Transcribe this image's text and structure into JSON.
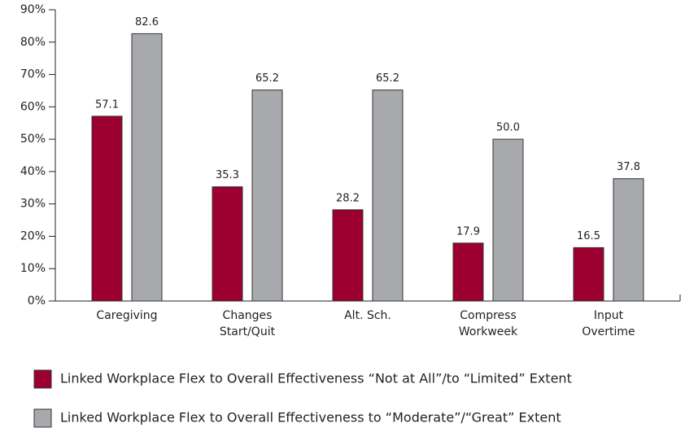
{
  "chart_data": {
    "type": "bar",
    "categories": [
      [
        "Caregiving"
      ],
      [
        "Changes",
        "Start/Quit"
      ],
      [
        "Alt. Sch."
      ],
      [
        "Compress",
        "Workweek"
      ],
      [
        "Input",
        "Overtime"
      ]
    ],
    "series": [
      {
        "name": "Linked Workplace Flex to Overall Effectiveness “Not at All”/to “Limited” Extent",
        "color": "#9b0030",
        "values": [
          57.1,
          35.3,
          28.2,
          17.9,
          16.5
        ],
        "value_labels": [
          "57.1",
          "35.3",
          "28.2",
          "17.9",
          "16.5"
        ]
      },
      {
        "name": "Linked Workplace Flex to Overall Effectiveness to “Moderate”/“Great” Extent",
        "color": "#a7a9ac",
        "values": [
          82.6,
          65.2,
          65.2,
          50.0,
          37.8
        ],
        "value_labels": [
          "82.6",
          "65.2",
          "65.2",
          "50.0",
          "37.8"
        ]
      }
    ],
    "ylim": [
      0,
      90
    ],
    "yticks": [
      {
        "value": 0,
        "label": "0%"
      },
      {
        "value": 10,
        "label": "10%"
      },
      {
        "value": 20,
        "label": "20%"
      },
      {
        "value": 30,
        "label": "30%"
      },
      {
        "value": 40,
        "label": "40%"
      },
      {
        "value": 50,
        "label": "50%"
      },
      {
        "value": 60,
        "label": "60%"
      },
      {
        "value": 70,
        "label": "70%"
      },
      {
        "value": 80,
        "label": "80%"
      },
      {
        "value": 90,
        "label": "90%"
      }
    ],
    "legend": "bottom"
  }
}
